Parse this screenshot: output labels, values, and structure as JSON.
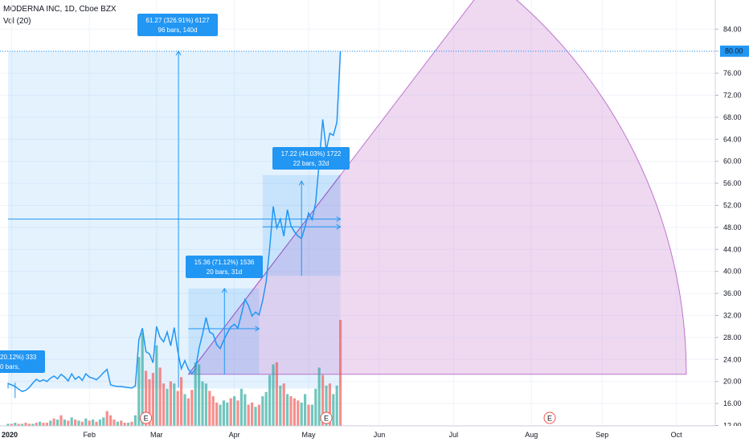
{
  "header": {
    "symbol_line": "MODERNA INC, 1D, Cboe BZX",
    "volume_line": "Vol (20)"
  },
  "colors": {
    "price_line": "#2196f3",
    "range_fill": "#2196f3",
    "fan_fill": "#ce93d8",
    "fan_stroke": "#9c27b0",
    "vol_up": "#26a69a",
    "vol_down": "#ef5350",
    "price_badge": "#2196f3"
  },
  "price_badge": "80.00",
  "annotations": [
    {
      "line1": "61.27 (326.91%) 6127",
      "line2": "96 bars, 140d"
    },
    {
      "line1": "17.22 (44.03%) 1722",
      "line2": "22 bars, 32d"
    },
    {
      "line1": "15.36 (71.12%) 1536",
      "line2": "20 bars, 31d"
    },
    {
      "line1": "20.12%) 333",
      "line2": "0 bars,"
    }
  ],
  "earnings_markers": [
    "E",
    "E",
    "E"
  ],
  "chart_data": {
    "type": "line",
    "yticks": [
      12,
      16,
      20,
      24,
      28,
      32,
      36,
      40,
      44,
      48,
      52,
      56,
      60,
      64,
      68,
      72,
      76,
      80,
      84
    ],
    "ylim": [
      11.5,
      86
    ],
    "xticks": [
      {
        "label": "2020",
        "x": 1
      },
      {
        "label": "Feb",
        "x": 23
      },
      {
        "label": "Mar",
        "x": 42
      },
      {
        "label": "Apr",
        "x": 64
      },
      {
        "label": "May",
        "x": 85
      },
      {
        "label": "Jun",
        "x": 105
      },
      {
        "label": "Jul",
        "x": 126
      },
      {
        "label": "Aug",
        "x": 148
      },
      {
        "label": "Sep",
        "x": 168
      },
      {
        "label": "Oct",
        "x": 189
      }
    ],
    "xlim": [
      0,
      206
    ],
    "price": [
      [
        0,
        19.6
      ],
      [
        1,
        19.4
      ],
      [
        2,
        19.1
      ],
      [
        3,
        18.6
      ],
      [
        4,
        18.2
      ],
      [
        5,
        18.4
      ],
      [
        6,
        18.9
      ],
      [
        7,
        19.7
      ],
      [
        8,
        20.4
      ],
      [
        9,
        20.0
      ],
      [
        10,
        20.3
      ],
      [
        11,
        20.0
      ],
      [
        12,
        20.6
      ],
      [
        13,
        21.0
      ],
      [
        14,
        20.5
      ],
      [
        15,
        21.3
      ],
      [
        16,
        20.8
      ],
      [
        17,
        20.1
      ],
      [
        18,
        21.4
      ],
      [
        19,
        20.4
      ],
      [
        20,
        20.9
      ],
      [
        21,
        20.2
      ],
      [
        22,
        21.4
      ],
      [
        23,
        20.8
      ],
      [
        24,
        20.6
      ],
      [
        25,
        20.3
      ],
      [
        26,
        20.9
      ],
      [
        27,
        21.6
      ],
      [
        28,
        22.2
      ],
      [
        29,
        19.4
      ],
      [
        30,
        19.2
      ],
      [
        31,
        19.1
      ],
      [
        32,
        19.1
      ],
      [
        33,
        19.0
      ],
      [
        34,
        18.9
      ],
      [
        35,
        18.8
      ],
      [
        36,
        19.2
      ],
      [
        37,
        27.6
      ],
      [
        38,
        29.7
      ],
      [
        39,
        25.4
      ],
      [
        40,
        25.0
      ],
      [
        41,
        23.4
      ],
      [
        42,
        30.0
      ],
      [
        43,
        28.0
      ],
      [
        44,
        27.2
      ],
      [
        45,
        29.0
      ],
      [
        46,
        26.5
      ],
      [
        47,
        29.8
      ],
      [
        48,
        25.5
      ],
      [
        49,
        22.3
      ],
      [
        50,
        23.8
      ],
      [
        51,
        22.2
      ],
      [
        52,
        21.4
      ],
      [
        53,
        22.2
      ],
      [
        54,
        26.0
      ],
      [
        55,
        28.6
      ],
      [
        56,
        31.6
      ],
      [
        57,
        29.0
      ],
      [
        58,
        28.6
      ],
      [
        59,
        26.7
      ],
      [
        60,
        26.0
      ],
      [
        61,
        27.5
      ],
      [
        62,
        28.8
      ],
      [
        63,
        29.9
      ],
      [
        64,
        30.4
      ],
      [
        65,
        29.7
      ],
      [
        66,
        32.2
      ],
      [
        67,
        34.9
      ],
      [
        68,
        33.8
      ],
      [
        69,
        31.9
      ],
      [
        70,
        32.6
      ],
      [
        71,
        32.1
      ],
      [
        72,
        34.7
      ],
      [
        73,
        38.1
      ],
      [
        74,
        44.3
      ],
      [
        75,
        51.8
      ],
      [
        76,
        47.9
      ],
      [
        77,
        49.5
      ],
      [
        78,
        46.4
      ],
      [
        79,
        51.2
      ],
      [
        80,
        48.3
      ],
      [
        81,
        47.2
      ],
      [
        82,
        46.4
      ],
      [
        83,
        46.0
      ],
      [
        84,
        48.1
      ],
      [
        85,
        50.6
      ],
      [
        86,
        49.4
      ],
      [
        87,
        52.5
      ],
      [
        88,
        59.8
      ],
      [
        89,
        67.6
      ],
      [
        90,
        62.0
      ],
      [
        91,
        65.1
      ],
      [
        92,
        64.7
      ],
      [
        93,
        67.1
      ],
      [
        94,
        80.0
      ]
    ],
    "volume": [
      [
        0,
        2,
        "u"
      ],
      [
        1,
        2,
        "d"
      ],
      [
        2,
        3,
        "u"
      ],
      [
        3,
        2,
        "d"
      ],
      [
        4,
        2,
        "u"
      ],
      [
        5,
        3,
        "d"
      ],
      [
        6,
        2,
        "d"
      ],
      [
        7,
        2,
        "u"
      ],
      [
        8,
        3,
        "d"
      ],
      [
        9,
        4,
        "u"
      ],
      [
        10,
        3,
        "d"
      ],
      [
        11,
        3,
        "d"
      ],
      [
        12,
        5,
        "u"
      ],
      [
        13,
        7,
        "d"
      ],
      [
        14,
        6,
        "u"
      ],
      [
        15,
        10,
        "d"
      ],
      [
        16,
        6,
        "u"
      ],
      [
        17,
        5,
        "d"
      ],
      [
        18,
        8,
        "u"
      ],
      [
        19,
        6,
        "d"
      ],
      [
        20,
        5,
        "u"
      ],
      [
        21,
        4,
        "d"
      ],
      [
        22,
        7,
        "u"
      ],
      [
        23,
        5,
        "d"
      ],
      [
        24,
        6,
        "u"
      ],
      [
        25,
        4,
        "d"
      ],
      [
        26,
        6,
        "u"
      ],
      [
        27,
        8,
        "u"
      ],
      [
        28,
        14,
        "d"
      ],
      [
        29,
        10,
        "d"
      ],
      [
        30,
        6,
        "d"
      ],
      [
        31,
        4,
        "u"
      ],
      [
        32,
        5,
        "d"
      ],
      [
        33,
        3,
        "d"
      ],
      [
        34,
        3,
        "u"
      ],
      [
        35,
        4,
        "d"
      ],
      [
        36,
        10,
        "u"
      ],
      [
        37,
        65,
        "u"
      ],
      [
        38,
        88,
        "u"
      ],
      [
        39,
        52,
        "d"
      ],
      [
        40,
        44,
        "d"
      ],
      [
        41,
        50,
        "d"
      ],
      [
        42,
        76,
        "u"
      ],
      [
        43,
        55,
        "d"
      ],
      [
        44,
        40,
        "d"
      ],
      [
        45,
        35,
        "u"
      ],
      [
        46,
        42,
        "d"
      ],
      [
        47,
        40,
        "u"
      ],
      [
        48,
        33,
        "d"
      ],
      [
        49,
        46,
        "d"
      ],
      [
        50,
        30,
        "u"
      ],
      [
        51,
        26,
        "d"
      ],
      [
        52,
        34,
        "d"
      ],
      [
        53,
        60,
        "u"
      ],
      [
        54,
        58,
        "u"
      ],
      [
        55,
        42,
        "u"
      ],
      [
        56,
        40,
        "u"
      ],
      [
        57,
        33,
        "d"
      ],
      [
        58,
        28,
        "d"
      ],
      [
        59,
        22,
        "d"
      ],
      [
        60,
        20,
        "u"
      ],
      [
        61,
        24,
        "u"
      ],
      [
        62,
        22,
        "u"
      ],
      [
        63,
        26,
        "d"
      ],
      [
        64,
        28,
        "u"
      ],
      [
        65,
        24,
        "d"
      ],
      [
        66,
        35,
        "u"
      ],
      [
        67,
        30,
        "u"
      ],
      [
        68,
        20,
        "d"
      ],
      [
        69,
        22,
        "d"
      ],
      [
        70,
        18,
        "u"
      ],
      [
        71,
        20,
        "d"
      ],
      [
        72,
        28,
        "u"
      ],
      [
        73,
        32,
        "u"
      ],
      [
        74,
        48,
        "u"
      ],
      [
        75,
        58,
        "u"
      ],
      [
        76,
        60,
        "d"
      ],
      [
        77,
        38,
        "u"
      ],
      [
        78,
        40,
        "d"
      ],
      [
        79,
        30,
        "u"
      ],
      [
        80,
        28,
        "d"
      ],
      [
        81,
        26,
        "d"
      ],
      [
        82,
        24,
        "d"
      ],
      [
        83,
        22,
        "u"
      ],
      [
        84,
        30,
        "u"
      ],
      [
        85,
        20,
        "d"
      ],
      [
        86,
        20,
        "u"
      ],
      [
        87,
        35,
        "u"
      ],
      [
        88,
        55,
        "u"
      ],
      [
        89,
        48,
        "d"
      ],
      [
        90,
        38,
        "u"
      ],
      [
        91,
        40,
        "d"
      ],
      [
        92,
        30,
        "u"
      ],
      [
        93,
        38,
        "u"
      ],
      [
        94,
        100,
        "d"
      ]
    ],
    "volume_max": 100
  }
}
